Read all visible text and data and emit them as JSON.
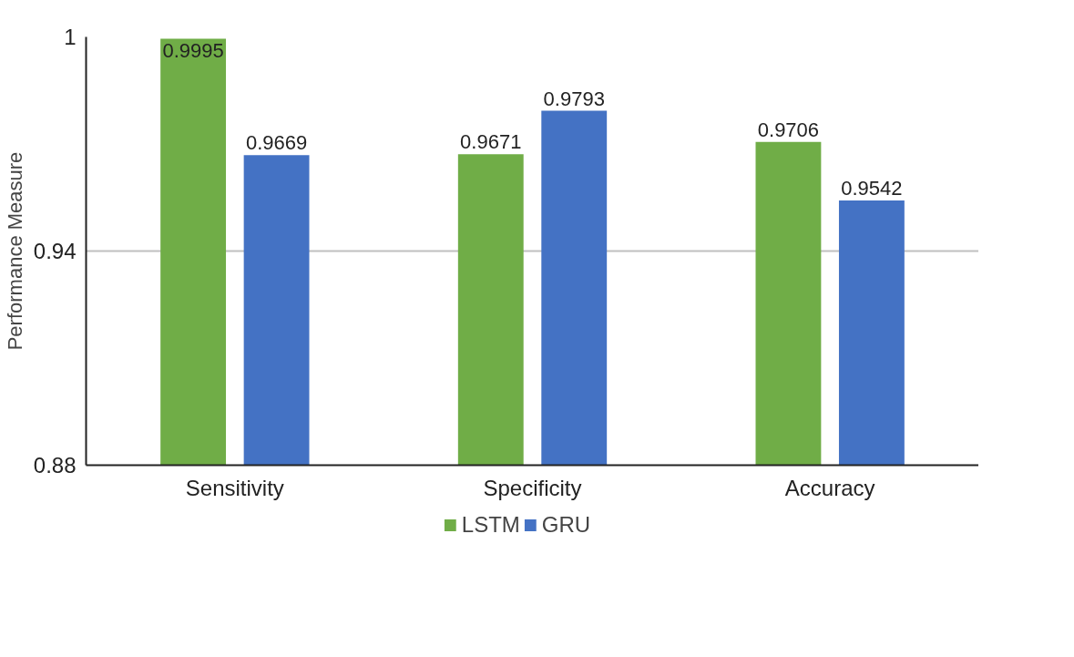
{
  "chart_data": {
    "type": "bar",
    "ylabel": "Performance Measure",
    "categories": [
      "Sensitivity",
      "Specificity",
      "Accuracy"
    ],
    "series": [
      {
        "name": "LSTM",
        "color": "#70ad47",
        "values": [
          0.9995,
          0.9671,
          0.9706
        ]
      },
      {
        "name": "GRU",
        "color": "#4472c4",
        "values": [
          0.9669,
          0.9793,
          0.9542
        ]
      }
    ],
    "ylim": [
      0.88,
      1
    ],
    "yticks": [
      0.88,
      0.94,
      1
    ],
    "grid": "y",
    "legend": "bottom",
    "data_labels": true
  }
}
